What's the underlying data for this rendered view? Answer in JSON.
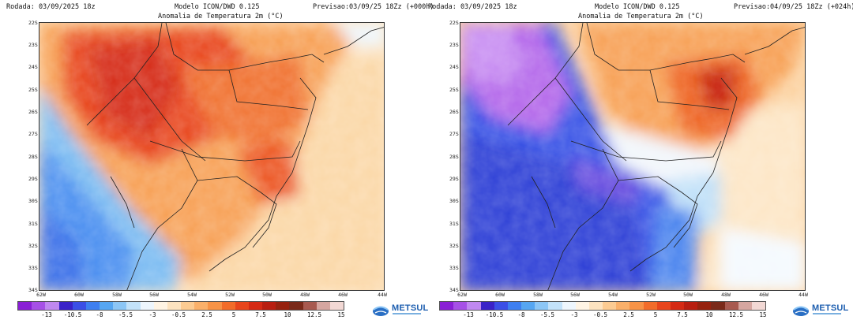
{
  "panels": [
    {
      "rodada": "Rodada: 03/09/2025 18z",
      "modelo": "Modelo ICON/DWD 0.125",
      "previsao": "Previsao:03/09/25 18Zz (+000h)",
      "titulo": "Anomalia de Temperatura 2m (°C)"
    },
    {
      "rodada": "Rodada: 03/09/2025 18z",
      "modelo": "Modelo ICON/DWD 0.125",
      "previsao": "Previsao:04/09/25 18Zz (+024h)",
      "titulo": "Anomalia de Temperatura 2m (°C)"
    }
  ],
  "lat_labels": [
    "22S",
    "23S",
    "24S",
    "25S",
    "26S",
    "27S",
    "28S",
    "29S",
    "30S",
    "31S",
    "32S",
    "33S",
    "34S"
  ],
  "lon_labels": [
    "62W",
    "60W",
    "58W",
    "56W",
    "54W",
    "52W",
    "50W",
    "48W",
    "46W",
    "44W"
  ],
  "colorbar_ticks": [
    "-13",
    "-10.5",
    "-8",
    "-5.5",
    "-3",
    "-0.5",
    "2.5",
    "5",
    "7.5",
    "10",
    "12.5",
    "15"
  ],
  "colorbar_colors": [
    "#8a1fd6",
    "#a650e6",
    "#c088f0",
    "#3a22c8",
    "#3b4fe6",
    "#3e7ff0",
    "#56a6f2",
    "#8cc6f6",
    "#c3e2fa",
    "#eef6fd",
    "#fff4e4",
    "#fde3c0",
    "#fccb92",
    "#fab06a",
    "#f79347",
    "#f26c2a",
    "#e8451c",
    "#d52a14",
    "#b81e10",
    "#96220f",
    "#7a2a1a",
    "#a85a50",
    "#d6a6a0",
    "#f2d8d4"
  ],
  "logo": {
    "text": "METSUL",
    "icon": "metsul-globe-icon"
  }
}
